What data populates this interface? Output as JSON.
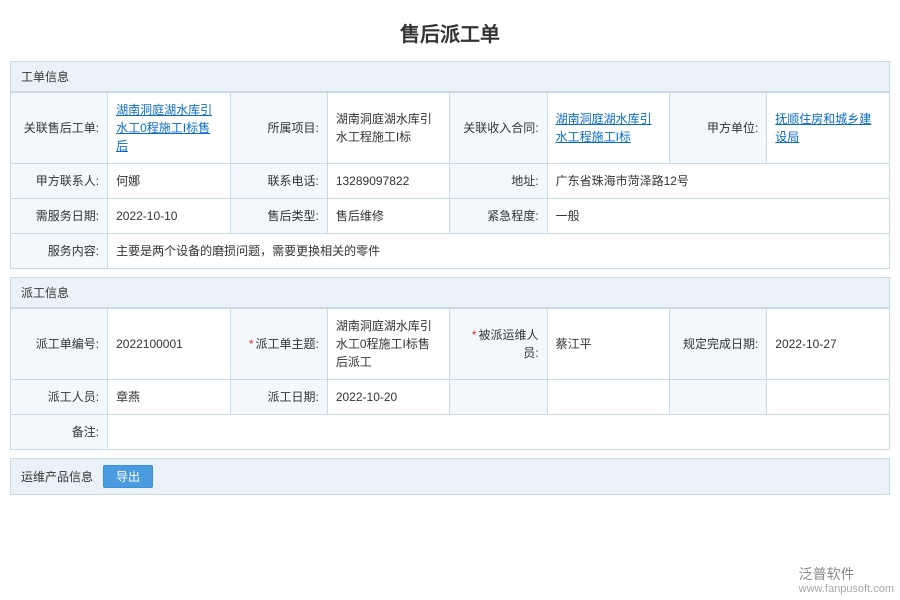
{
  "title": "售后派工单",
  "sections": {
    "order_info": "工单信息",
    "dispatch_info": "派工信息",
    "ops_product_info": "运维产品信息"
  },
  "labels": {
    "related_after_order": "关联售后工单:",
    "project": "所属项目:",
    "related_income_contract": "关联收入合同:",
    "party_a_unit": "甲方单位:",
    "party_a_contact": "甲方联系人:",
    "contact_phone": "联系电话:",
    "address": "地址:",
    "service_date": "需服务日期:",
    "after_type": "售后类型:",
    "urgency": "紧急程度:",
    "service_content": "服务内容:",
    "dispatch_no": "派工单编号:",
    "dispatch_subject": "派工单主题:",
    "assigned_ops_person": "被派运维人员:",
    "due_date": "规定完成日期:",
    "dispatcher": "派工人员:",
    "dispatch_date": "派工日期:",
    "remark": "备注:"
  },
  "values": {
    "related_after_order": "湖南洞庭湖水库引水工0程施工I标售后",
    "project": "湖南洞庭湖水库引水工程施工I标",
    "related_income_contract": "湖南洞庭湖水库引水工程施工I标",
    "party_a_unit": "抚顺住房和城乡建设局",
    "party_a_contact": "何娜",
    "contact_phone": "13289097822",
    "address": "广东省珠海市菏泽路12号",
    "service_date": "2022-10-10",
    "after_type": "售后维修",
    "urgency": "一般",
    "service_content": "主要是两个设备的磨损问题，需要更换相关的零件",
    "dispatch_no": "2022100001",
    "dispatch_subject": "湖南洞庭湖水库引水工0程施工I标售后派工",
    "assigned_ops_person": "蔡江平",
    "due_date": "2022-10-27",
    "dispatcher": "章燕",
    "dispatch_date": "2022-10-20",
    "remark": ""
  },
  "buttons": {
    "export": "导出"
  },
  "watermark": {
    "brand": "泛普软件",
    "url": "www.fanpusoft.com"
  },
  "colors": {
    "border": "#c9dbe8",
    "header_bg": "#eaf1f7",
    "label_bg": "#f3f8fc",
    "link": "#0a6cc7",
    "btn_bg": "#4a9be0",
    "required": "#d93025"
  }
}
